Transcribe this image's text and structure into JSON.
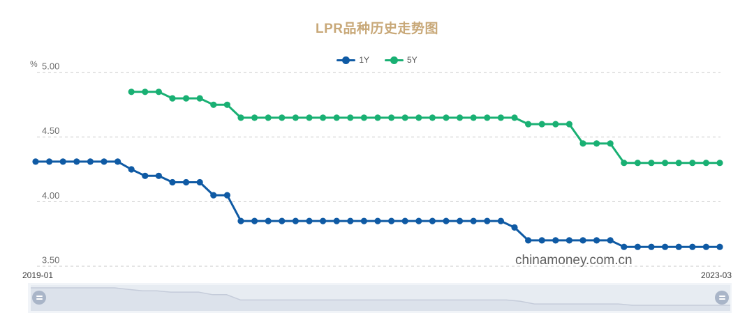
{
  "title": "LPR品种历史走势图",
  "watermark": "chinamoney.com.cn",
  "colors": {
    "title": "#C8A878",
    "line_1y": "#0F5AA4",
    "line_5y": "#19B073",
    "grid": "#C9C9C9",
    "y_label": "#6E6E6E",
    "x_label": "#3C3C3C",
    "slider_band": "#E7ECF2",
    "slider_area_fill": "#DCE2EB",
    "slider_area_line": "#C5CCDA",
    "slider_handle": "#A9B5C8"
  },
  "legend": [
    {
      "label": "1Y",
      "color": "#0F5AA4"
    },
    {
      "label": "5Y",
      "color": "#19B073"
    }
  ],
  "y_axis": {
    "unit": "%",
    "ticks": [
      "5.00",
      "4.50",
      "4.00",
      "3.50"
    ],
    "tick_values": [
      5.0,
      4.5,
      4.0,
      3.5
    ]
  },
  "x_axis": {
    "first_label": "2019-01",
    "last_label": "2023-03"
  },
  "chart_data": {
    "type": "line",
    "title": "LPR品种历史走势图",
    "ylabel": "%",
    "ylim": [
      3.5,
      5.0
    ],
    "grid": "dashed-horizontal",
    "legend_position": "top-center",
    "x": [
      "2019-01",
      "2019-02",
      "2019-03",
      "2019-04",
      "2019-05",
      "2019-06",
      "2019-07",
      "2019-08",
      "2019-09",
      "2019-10",
      "2019-11",
      "2019-12",
      "2020-01",
      "2020-02",
      "2020-03",
      "2020-04",
      "2020-05",
      "2020-06",
      "2020-07",
      "2020-08",
      "2020-09",
      "2020-10",
      "2020-11",
      "2020-12",
      "2021-01",
      "2021-02",
      "2021-03",
      "2021-04",
      "2021-05",
      "2021-06",
      "2021-07",
      "2021-08",
      "2021-09",
      "2021-10",
      "2021-11",
      "2021-12",
      "2022-01",
      "2022-02",
      "2022-03",
      "2022-04",
      "2022-05",
      "2022-06",
      "2022-07",
      "2022-08",
      "2022-09",
      "2022-10",
      "2022-11",
      "2022-12",
      "2023-01",
      "2023-02",
      "2023-03"
    ],
    "series": [
      {
        "name": "1Y",
        "color": "#0F5AA4",
        "values": [
          4.31,
          4.31,
          4.31,
          4.31,
          4.31,
          4.31,
          4.31,
          4.25,
          4.2,
          4.2,
          4.15,
          4.15,
          4.15,
          4.05,
          4.05,
          3.85,
          3.85,
          3.85,
          3.85,
          3.85,
          3.85,
          3.85,
          3.85,
          3.85,
          3.85,
          3.85,
          3.85,
          3.85,
          3.85,
          3.85,
          3.85,
          3.85,
          3.85,
          3.85,
          3.85,
          3.8,
          3.7,
          3.7,
          3.7,
          3.7,
          3.7,
          3.7,
          3.7,
          3.65,
          3.65,
          3.65,
          3.65,
          3.65,
          3.65,
          3.65,
          3.65
        ]
      },
      {
        "name": "5Y",
        "color": "#19B073",
        "values": [
          null,
          null,
          null,
          null,
          null,
          null,
          null,
          4.85,
          4.85,
          4.85,
          4.8,
          4.8,
          4.8,
          4.75,
          4.75,
          4.65,
          4.65,
          4.65,
          4.65,
          4.65,
          4.65,
          4.65,
          4.65,
          4.65,
          4.65,
          4.65,
          4.65,
          4.65,
          4.65,
          4.65,
          4.65,
          4.65,
          4.65,
          4.65,
          4.65,
          4.65,
          4.6,
          4.6,
          4.6,
          4.6,
          4.45,
          4.45,
          4.45,
          4.3,
          4.3,
          4.3,
          4.3,
          4.3,
          4.3,
          4.3,
          4.3
        ]
      }
    ]
  }
}
